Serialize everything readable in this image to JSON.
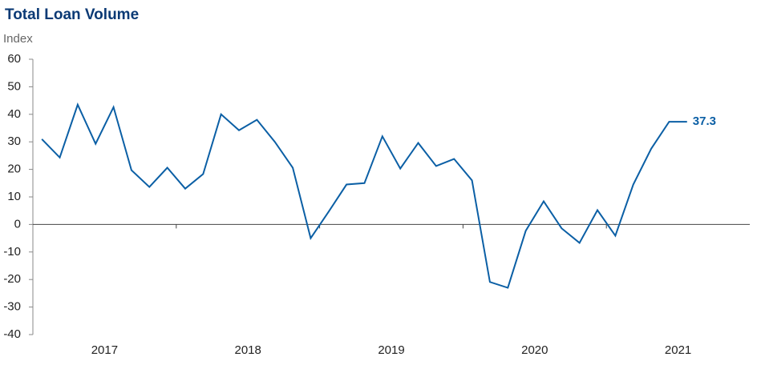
{
  "chart_data": {
    "type": "line",
    "title": "Total Loan Volume",
    "y_label": "Index",
    "categories": [
      "2017",
      null,
      null,
      null,
      null,
      null,
      null,
      null,
      "2018",
      null,
      null,
      null,
      null,
      null,
      null,
      null,
      "2019",
      null,
      null,
      null,
      null,
      null,
      null,
      null,
      "2020",
      null,
      null,
      null,
      null,
      null,
      null,
      null,
      "2021",
      null,
      null,
      null,
      null,
      null,
      null,
      null
    ],
    "series": [
      {
        "name": "Total Loan Volume",
        "color": "#0b5fa5",
        "values": [
          31,
          24.3,
          43.5,
          29.3,
          42.6,
          19.7,
          13.6,
          20.6,
          13,
          18.3,
          40,
          34.2,
          38,
          30,
          20.6,
          -5,
          4.6,
          14.5,
          15,
          32,
          20.3,
          29.6,
          21.2,
          23.8,
          16,
          -20.9,
          -23,
          -2.3,
          8.4,
          -1.4,
          -6.7,
          5.2,
          -4.1,
          14.5,
          27.5,
          37.3,
          37.3,
          null,
          null,
          null
        ],
        "value_labels": [
          null,
          null,
          null,
          null,
          null,
          null,
          null,
          null,
          null,
          null,
          null,
          null,
          null,
          null,
          null,
          null,
          null,
          null,
          null,
          null,
          null,
          null,
          null,
          null,
          null,
          null,
          null,
          null,
          null,
          null,
          null,
          null,
          null,
          null,
          null,
          null,
          "37.3",
          null,
          null,
          null
        ]
      }
    ],
    "ylim": [
      -40,
      60
    ],
    "yticks": [
      -40,
      -30,
      -20,
      -10,
      0,
      10,
      20,
      30,
      40,
      50,
      60
    ]
  }
}
